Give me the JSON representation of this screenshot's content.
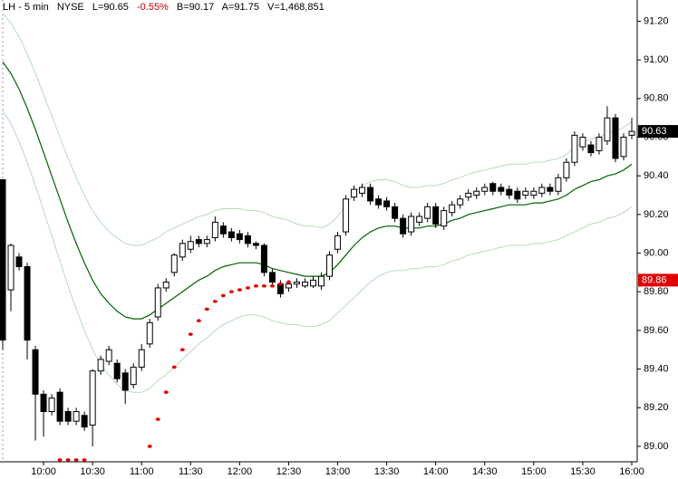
{
  "chart_data": {
    "type": "candlestick",
    "title": "LH - 5 min",
    "exchange": "NYSE",
    "last": "L=90.65",
    "change": "-0.55%",
    "bid": "B=90.17",
    "ask": "A=91.75",
    "volume": "V=1,468,851",
    "change_color": "#c00000",
    "categories": [
      null,
      null,
      null,
      null,
      null,
      "10:00",
      null,
      null,
      null,
      null,
      null,
      "10:30",
      null,
      null,
      null,
      null,
      null,
      "11:00",
      null,
      null,
      null,
      null,
      null,
      "11:30",
      null,
      null,
      null,
      null,
      null,
      "12:00",
      null,
      null,
      null,
      null,
      null,
      "12:30",
      null,
      null,
      null,
      null,
      null,
      "13:00",
      null,
      null,
      null,
      null,
      null,
      "13:30",
      null,
      null,
      null,
      null,
      null,
      "14:00",
      null,
      null,
      null,
      null,
      null,
      "14:30",
      null,
      null,
      null,
      null,
      null,
      "15:00",
      null,
      null,
      null,
      null,
      null,
      "15:30",
      null,
      null,
      null,
      null,
      null,
      "16:00"
    ],
    "candles": {
      "up_color": "#ffffff",
      "down_color": "#000000",
      "open": [
        90.38,
        89.81,
        89.98,
        89.93,
        89.5,
        89.27,
        89.18,
        89.28,
        89.18,
        89.13,
        89.16,
        89.11,
        89.39,
        89.44,
        89.43,
        89.38,
        89.32,
        89.41,
        89.53,
        89.67,
        89.82,
        89.9,
        89.98,
        90.02,
        90.07,
        90.05,
        90.08,
        90.14,
        90.11,
        90.1,
        90.09,
        90.05,
        90.04,
        89.9,
        89.84,
        89.82,
        89.84,
        89.83,
        89.83,
        89.83,
        89.88,
        90.02,
        90.11,
        90.29,
        90.31,
        90.34,
        90.28,
        90.27,
        90.24,
        90.18,
        90.11,
        90.16,
        90.18,
        90.24,
        90.14,
        90.21,
        90.25,
        90.29,
        90.3,
        90.32,
        90.36,
        90.34,
        90.33,
        90.32,
        90.3,
        90.3,
        90.31,
        90.34,
        90.32,
        90.39,
        90.47,
        90.55,
        90.56,
        90.53,
        90.58,
        90.7,
        90.5,
        90.61
      ],
      "high": [
        90.38,
        90.05,
        90.0,
        89.95,
        89.52,
        89.29,
        89.27,
        89.3,
        89.2,
        89.2,
        89.18,
        89.4,
        89.47,
        89.52,
        89.45,
        89.4,
        89.43,
        89.53,
        89.66,
        89.84,
        89.87,
        90.0,
        90.07,
        90.09,
        90.09,
        90.09,
        90.19,
        90.16,
        90.13,
        90.12,
        90.11,
        90.06,
        90.05,
        89.92,
        89.86,
        89.86,
        89.87,
        89.87,
        89.88,
        89.9,
        90.01,
        90.11,
        90.3,
        90.35,
        90.36,
        90.36,
        90.3,
        90.29,
        90.26,
        90.2,
        90.21,
        90.21,
        90.26,
        90.26,
        90.24,
        90.27,
        90.3,
        90.33,
        90.34,
        90.36,
        90.37,
        90.36,
        90.35,
        90.34,
        90.34,
        90.34,
        90.36,
        90.36,
        90.41,
        90.49,
        90.63,
        90.62,
        90.58,
        90.62,
        90.76,
        90.72,
        90.62,
        90.7
      ],
      "low": [
        89.5,
        89.7,
        89.91,
        89.45,
        89.03,
        89.05,
        89.16,
        89.11,
        89.11,
        89.11,
        89.08,
        89.0,
        89.37,
        89.42,
        89.33,
        89.22,
        89.3,
        89.39,
        89.51,
        89.65,
        89.8,
        89.88,
        89.96,
        90.0,
        90.03,
        90.03,
        90.06,
        90.08,
        90.06,
        90.05,
        90.03,
        90.02,
        89.88,
        89.83,
        89.77,
        89.8,
        89.82,
        89.82,
        89.82,
        89.81,
        89.86,
        90.0,
        90.09,
        90.27,
        90.29,
        90.25,
        90.23,
        90.22,
        90.16,
        90.08,
        90.09,
        90.14,
        90.16,
        90.13,
        90.12,
        90.19,
        90.23,
        90.27,
        90.28,
        90.3,
        90.3,
        90.3,
        90.28,
        90.26,
        90.28,
        90.28,
        90.29,
        90.3,
        90.3,
        90.37,
        90.45,
        90.53,
        90.5,
        90.51,
        90.56,
        90.47,
        90.48,
        90.59
      ],
      "close": [
        89.55,
        90.04,
        89.93,
        89.55,
        89.27,
        89.18,
        89.25,
        89.13,
        89.13,
        89.18,
        89.1,
        89.39,
        89.45,
        89.5,
        89.35,
        89.29,
        89.41,
        89.5,
        89.64,
        89.82,
        89.85,
        89.99,
        90.05,
        90.06,
        90.05,
        90.07,
        90.16,
        90.1,
        90.08,
        90.07,
        90.05,
        90.04,
        89.9,
        89.85,
        89.79,
        89.84,
        89.85,
        89.85,
        89.86,
        89.88,
        89.99,
        90.09,
        90.28,
        90.33,
        90.34,
        90.27,
        90.25,
        90.24,
        90.18,
        90.1,
        90.19,
        90.19,
        90.24,
        90.15,
        90.22,
        90.25,
        90.28,
        90.31,
        90.32,
        90.34,
        90.32,
        90.32,
        90.3,
        90.28,
        90.32,
        90.32,
        90.34,
        90.32,
        90.39,
        90.47,
        90.61,
        90.6,
        90.52,
        90.6,
        90.7,
        90.49,
        90.6,
        90.63
      ]
    },
    "bands": [
      {
        "color": "#006400",
        "values": [
          90.99,
          90.93,
          90.85,
          90.75,
          90.64,
          90.52,
          90.4,
          90.28,
          90.16,
          90.05,
          89.95,
          89.86,
          89.79,
          89.74,
          89.7,
          89.67,
          89.66,
          89.66,
          89.68,
          89.71,
          89.74,
          89.77,
          89.8,
          89.83,
          89.86,
          89.88,
          89.91,
          89.93,
          89.94,
          89.95,
          89.95,
          89.95,
          89.94,
          89.92,
          89.91,
          89.9,
          89.89,
          89.88,
          89.88,
          89.88,
          89.9,
          89.94,
          89.99,
          90.04,
          90.08,
          90.11,
          90.13,
          90.14,
          90.14,
          90.13,
          90.13,
          90.13,
          90.14,
          90.14,
          90.15,
          90.17,
          90.18,
          90.2,
          90.21,
          90.22,
          90.23,
          90.24,
          90.25,
          90.25,
          90.25,
          90.26,
          90.26,
          90.27,
          90.28,
          90.3,
          90.33,
          90.35,
          90.37,
          90.38,
          90.4,
          90.41,
          90.43,
          90.46
        ]
      },
      {
        "color": "#b9dcb9",
        "values": [
          91.24,
          91.19,
          91.12,
          91.03,
          90.93,
          90.82,
          90.71,
          90.6,
          90.49,
          90.39,
          90.3,
          90.22,
          90.16,
          90.11,
          90.08,
          90.05,
          90.04,
          90.04,
          90.06,
          90.08,
          90.11,
          90.13,
          90.15,
          90.17,
          90.19,
          90.2,
          90.22,
          90.23,
          90.23,
          90.23,
          90.22,
          90.22,
          90.21,
          90.19,
          90.18,
          90.17,
          90.15,
          90.14,
          90.14,
          90.13,
          90.15,
          90.19,
          90.25,
          90.31,
          90.35,
          90.37,
          90.38,
          90.38,
          90.37,
          90.35,
          90.34,
          90.34,
          90.35,
          90.35,
          90.36,
          90.38,
          90.39,
          90.41,
          90.42,
          90.43,
          90.44,
          90.45,
          90.46,
          90.46,
          90.46,
          90.47,
          90.47,
          90.48,
          90.49,
          90.51,
          90.55,
          90.57,
          90.59,
          90.6,
          90.62,
          90.63,
          90.65,
          90.68
        ]
      },
      {
        "color": "#b9dcb9",
        "values": [
          90.74,
          90.67,
          90.58,
          90.47,
          90.35,
          90.22,
          90.09,
          89.96,
          89.83,
          89.71,
          89.6,
          89.5,
          89.42,
          89.37,
          89.32,
          89.29,
          89.28,
          89.28,
          89.3,
          89.34,
          89.37,
          89.41,
          89.45,
          89.49,
          89.53,
          89.56,
          89.6,
          89.63,
          89.65,
          89.67,
          89.68,
          89.68,
          89.67,
          89.65,
          89.64,
          89.63,
          89.63,
          89.62,
          89.62,
          89.63,
          89.65,
          89.69,
          89.73,
          89.77,
          89.81,
          89.85,
          89.88,
          89.9,
          89.91,
          89.91,
          89.92,
          89.92,
          89.93,
          89.93,
          89.94,
          89.96,
          89.97,
          89.99,
          90.0,
          90.01,
          90.02,
          90.03,
          90.04,
          90.04,
          90.04,
          90.05,
          90.05,
          90.06,
          90.07,
          90.09,
          90.11,
          90.13,
          90.15,
          90.16,
          90.18,
          90.19,
          90.21,
          90.24
        ]
      }
    ],
    "sar": {
      "color": "#e00000",
      "values": [
        null,
        null,
        null,
        null,
        null,
        null,
        null,
        88.93,
        88.93,
        88.93,
        88.93,
        null,
        null,
        null,
        null,
        null,
        null,
        null,
        89.0,
        89.14,
        89.28,
        89.41,
        89.5,
        89.58,
        89.65,
        89.71,
        89.75,
        89.78,
        89.8,
        89.81,
        89.82,
        89.83,
        89.83,
        89.83,
        89.84,
        89.85,
        null,
        null,
        null,
        null,
        null,
        null,
        null,
        null,
        null,
        null,
        null,
        null,
        null,
        null,
        null,
        null,
        null,
        null,
        null,
        null,
        null,
        null,
        null,
        null,
        null,
        null,
        null,
        null,
        null,
        null,
        null,
        null,
        null,
        null,
        null,
        null,
        null,
        null,
        null,
        null,
        null,
        null
      ]
    },
    "price_tags": [
      {
        "value": 90.63,
        "label": "90.63",
        "color": "#000000"
      },
      {
        "value": 89.86,
        "label": "89.86",
        "color": "#e00000"
      }
    ],
    "ylim": [
      88.92,
      91.31
    ],
    "yticks": [
      {
        "value": 89,
        "label": "89.00"
      },
      {
        "value": 89.2,
        "label": "89.20"
      },
      {
        "value": 89.4,
        "label": "89.40"
      },
      {
        "value": 89.6,
        "label": "89.60"
      },
      {
        "value": 89.8,
        "label": "89.80"
      },
      {
        "value": 90,
        "label": "90.00"
      },
      {
        "value": 90.2,
        "label": "90.20"
      },
      {
        "value": 90.4,
        "label": "90.40"
      },
      {
        "value": 90.6,
        "label": "90.60"
      },
      {
        "value": 90.8,
        "label": "90.80"
      },
      {
        "value": 91,
        "label": "91.00"
      },
      {
        "value": 91.2,
        "label": "91.20"
      }
    ]
  }
}
